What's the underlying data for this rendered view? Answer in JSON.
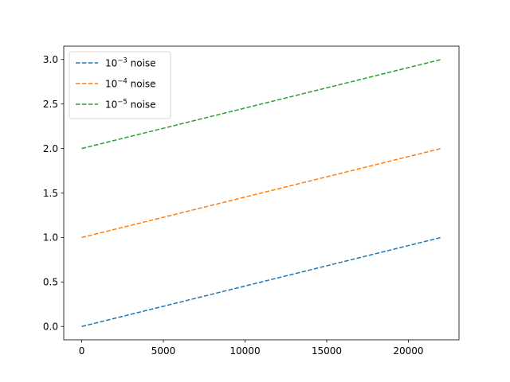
{
  "chart_data": {
    "type": "line",
    "title": "",
    "xlabel": "",
    "ylabel": "",
    "xlim": [
      -1100,
      23100
    ],
    "ylim": [
      -0.15,
      3.15
    ],
    "xticks": [
      0,
      5000,
      10000,
      15000,
      20000
    ],
    "xtick_labels": [
      "0",
      "5000",
      "10000",
      "15000",
      "20000"
    ],
    "yticks": [
      0.0,
      0.5,
      1.0,
      1.5,
      2.0,
      2.5,
      3.0
    ],
    "ytick_labels": [
      "0.0",
      "0.5",
      "1.0",
      "1.5",
      "2.0",
      "2.5",
      "3.0"
    ],
    "grid": false,
    "legend_position": "upper-left",
    "series": [
      {
        "base": "10",
        "exponent": "−3",
        "suffix": " noise",
        "color": "#1f77b4",
        "line_style": "dashed",
        "x": [
          0,
          22000
        ],
        "y": [
          0.0,
          1.0
        ]
      },
      {
        "base": "10",
        "exponent": "−4",
        "suffix": " noise",
        "color": "#ff7f0e",
        "line_style": "dashed",
        "x": [
          0,
          22000
        ],
        "y": [
          1.0,
          2.0
        ]
      },
      {
        "base": "10",
        "exponent": "−5",
        "suffix": " noise",
        "color": "#2ca02c",
        "line_style": "dashed",
        "x": [
          0,
          22000
        ],
        "y": [
          2.0,
          3.0
        ]
      }
    ]
  }
}
